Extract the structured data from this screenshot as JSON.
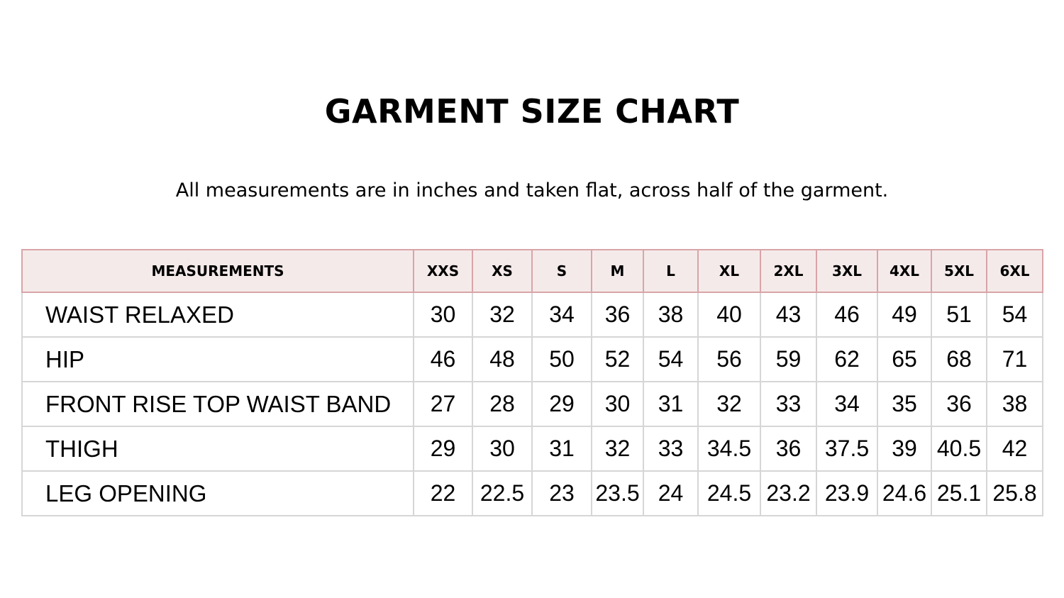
{
  "title": "GARMENT SIZE CHART",
  "subtitle": "All measurements are in inches and taken flat, across half of the garment.",
  "table": {
    "header": [
      "MEASUREMENTS",
      "XXS",
      "XS",
      "S",
      "M",
      "L",
      "XL",
      "2XL",
      "3XL",
      "4XL",
      "5XL",
      "6XL"
    ],
    "rows": [
      [
        "WAIST RELAXED",
        "30",
        "32",
        "34",
        "36",
        "38",
        "40",
        "43",
        "46",
        "49",
        "51",
        "54"
      ],
      [
        "HIP",
        "46",
        "48",
        "50",
        "52",
        "54",
        "56",
        "59",
        "62",
        "65",
        "68",
        "71"
      ],
      [
        "FRONT RISE TOP WAIST BAND",
        "27",
        "28",
        "29",
        "30",
        "31",
        "32",
        "33",
        "34",
        "35",
        "36",
        "38"
      ],
      [
        "THIGH",
        "29",
        "30",
        "31",
        "32",
        "33",
        "34.5",
        "36",
        "37.5",
        "39",
        "40.5",
        "42"
      ],
      [
        "LEG OPENING",
        "22",
        "22.5",
        "23",
        "23.5",
        "24",
        "24.5",
        "23.2",
        "23.9",
        "24.6",
        "25.1",
        "25.8"
      ]
    ]
  },
  "colors": {
    "header_bg": "#f5eaea",
    "header_border": "#d8a4a8",
    "cell_border": "#d6d6d6"
  }
}
